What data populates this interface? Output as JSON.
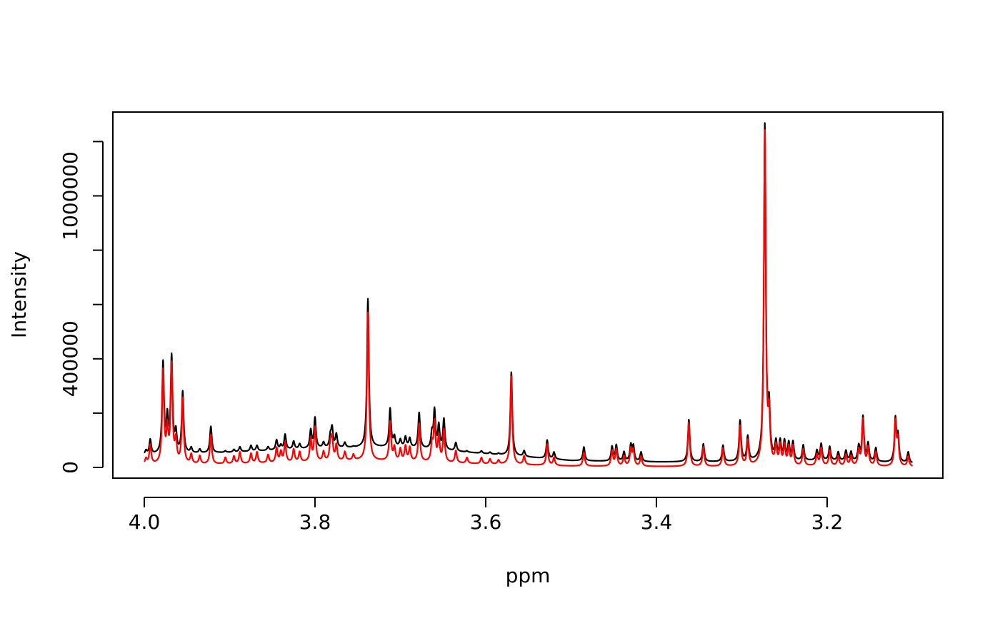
{
  "chart_data": {
    "type": "line",
    "title": "",
    "xlabel": "ppm",
    "ylabel": "Intensity",
    "x_reversed": true,
    "xlim": [
      4.0,
      3.1
    ],
    "ylim": [
      0,
      1200000
    ],
    "x_ticks": [
      4.0,
      3.8,
      3.6,
      3.4,
      3.2
    ],
    "x_tick_labels": [
      "4.0",
      "3.8",
      "3.6",
      "3.4",
      "3.2"
    ],
    "y_ticks": [
      0,
      200000,
      400000,
      600000,
      800000,
      1000000,
      1200000
    ],
    "y_tick_labels": [
      "0",
      "",
      "400000",
      "",
      "",
      "1000000",
      ""
    ],
    "grid": false,
    "legend": "none",
    "series": [
      {
        "color": "#000000",
        "baseline": [
          [
            4.0,
            45000
          ],
          [
            3.9,
            55000
          ],
          [
            3.8,
            70000
          ],
          [
            3.7,
            75000
          ],
          [
            3.6,
            50000
          ],
          [
            3.5,
            25000
          ],
          [
            3.45,
            22000
          ],
          [
            3.4,
            20000
          ],
          [
            3.3,
            20000
          ],
          [
            3.2,
            25000
          ],
          [
            3.1,
            15000
          ]
        ],
        "peaks": [
          [
            3.998,
            60000
          ],
          [
            3.993,
            100000
          ],
          [
            3.978,
            380000
          ],
          [
            3.973,
            170000
          ],
          [
            3.968,
            400000
          ],
          [
            3.963,
            120000
          ],
          [
            3.955,
            275000
          ],
          [
            3.945,
            70000
          ],
          [
            3.935,
            65000
          ],
          [
            3.922,
            150000
          ],
          [
            3.905,
            60000
          ],
          [
            3.895,
            65000
          ],
          [
            3.888,
            75000
          ],
          [
            3.875,
            80000
          ],
          [
            3.868,
            80000
          ],
          [
            3.855,
            75000
          ],
          [
            3.845,
            100000
          ],
          [
            3.84,
            80000
          ],
          [
            3.835,
            120000
          ],
          [
            3.825,
            95000
          ],
          [
            3.818,
            85000
          ],
          [
            3.805,
            135000
          ],
          [
            3.8,
            180000
          ],
          [
            3.79,
            90000
          ],
          [
            3.782,
            110000
          ],
          [
            3.78,
            140000
          ],
          [
            3.775,
            120000
          ],
          [
            3.765,
            90000
          ],
          [
            3.755,
            75000
          ],
          [
            3.738,
            620000
          ],
          [
            3.712,
            215000
          ],
          [
            3.707,
            110000
          ],
          [
            3.7,
            100000
          ],
          [
            3.694,
            110000
          ],
          [
            3.689,
            105000
          ],
          [
            3.678,
            200000
          ],
          [
            3.663,
            120000
          ],
          [
            3.66,
            205000
          ],
          [
            3.655,
            150000
          ],
          [
            3.649,
            175000
          ],
          [
            3.635,
            90000
          ],
          [
            3.622,
            60000
          ],
          [
            3.605,
            60000
          ],
          [
            3.595,
            55000
          ],
          [
            3.585,
            50000
          ],
          [
            3.57,
            350000
          ],
          [
            3.555,
            60000
          ],
          [
            3.528,
            100000
          ],
          [
            3.52,
            55000
          ],
          [
            3.485,
            75000
          ],
          [
            3.452,
            75000
          ],
          [
            3.447,
            80000
          ],
          [
            3.438,
            55000
          ],
          [
            3.43,
            80000
          ],
          [
            3.427,
            75000
          ],
          [
            3.418,
            55000
          ],
          [
            3.362,
            175000
          ],
          [
            3.345,
            85000
          ],
          [
            3.322,
            80000
          ],
          [
            3.302,
            170000
          ],
          [
            3.293,
            110000
          ],
          [
            3.273,
            1255000
          ],
          [
            3.268,
            195000
          ],
          [
            3.26,
            85000
          ],
          [
            3.255,
            90000
          ],
          [
            3.25,
            90000
          ],
          [
            3.245,
            85000
          ],
          [
            3.24,
            90000
          ],
          [
            3.228,
            80000
          ],
          [
            3.212,
            60000
          ],
          [
            3.207,
            85000
          ],
          [
            3.197,
            75000
          ],
          [
            3.187,
            55000
          ],
          [
            3.178,
            60000
          ],
          [
            3.172,
            55000
          ],
          [
            3.163,
            75000
          ],
          [
            3.158,
            185000
          ],
          [
            3.152,
            85000
          ],
          [
            3.143,
            70000
          ],
          [
            3.12,
            175000
          ],
          [
            3.117,
            110000
          ],
          [
            3.105,
            55000
          ]
        ]
      },
      {
        "color": "#FF0000",
        "baseline": [
          [
            4.0,
            10000
          ],
          [
            3.9,
            12000
          ],
          [
            3.8,
            20000
          ],
          [
            3.75,
            25000
          ],
          [
            3.7,
            22000
          ],
          [
            3.6,
            12000
          ],
          [
            3.5,
            5000
          ],
          [
            3.4,
            3000
          ],
          [
            3.3,
            3000
          ],
          [
            3.2,
            5000
          ],
          [
            3.1,
            2000
          ]
        ],
        "peaks": [
          [
            3.998,
            30000
          ],
          [
            3.993,
            80000
          ],
          [
            3.978,
            350000
          ],
          [
            3.973,
            130000
          ],
          [
            3.968,
            370000
          ],
          [
            3.963,
            90000
          ],
          [
            3.955,
            250000
          ],
          [
            3.945,
            45000
          ],
          [
            3.935,
            40000
          ],
          [
            3.922,
            120000
          ],
          [
            3.905,
            35000
          ],
          [
            3.895,
            40000
          ],
          [
            3.888,
            55000
          ],
          [
            3.875,
            50000
          ],
          [
            3.868,
            55000
          ],
          [
            3.855,
            45000
          ],
          [
            3.845,
            70000
          ],
          [
            3.84,
            55000
          ],
          [
            3.835,
            90000
          ],
          [
            3.825,
            65000
          ],
          [
            3.818,
            55000
          ],
          [
            3.805,
            100000
          ],
          [
            3.8,
            145000
          ],
          [
            3.79,
            55000
          ],
          [
            3.782,
            80000
          ],
          [
            3.78,
            100000
          ],
          [
            3.775,
            80000
          ],
          [
            3.765,
            55000
          ],
          [
            3.755,
            45000
          ],
          [
            3.738,
            570000
          ],
          [
            3.712,
            165000
          ],
          [
            3.707,
            70000
          ],
          [
            3.7,
            65000
          ],
          [
            3.694,
            75000
          ],
          [
            3.689,
            70000
          ],
          [
            3.678,
            160000
          ],
          [
            3.663,
            80000
          ],
          [
            3.66,
            160000
          ],
          [
            3.655,
            110000
          ],
          [
            3.649,
            135000
          ],
          [
            3.635,
            60000
          ],
          [
            3.622,
            35000
          ],
          [
            3.605,
            35000
          ],
          [
            3.595,
            30000
          ],
          [
            3.585,
            25000
          ],
          [
            3.57,
            335000
          ],
          [
            3.555,
            40000
          ],
          [
            3.528,
            85000
          ],
          [
            3.52,
            35000
          ],
          [
            3.485,
            55000
          ],
          [
            3.452,
            60000
          ],
          [
            3.447,
            65000
          ],
          [
            3.438,
            40000
          ],
          [
            3.43,
            65000
          ],
          [
            3.427,
            60000
          ],
          [
            3.418,
            40000
          ],
          [
            3.362,
            165000
          ],
          [
            3.345,
            75000
          ],
          [
            3.322,
            70000
          ],
          [
            3.302,
            150000
          ],
          [
            3.293,
            95000
          ],
          [
            3.273,
            1230000
          ],
          [
            3.268,
            170000
          ],
          [
            3.26,
            70000
          ],
          [
            3.255,
            75000
          ],
          [
            3.25,
            75000
          ],
          [
            3.245,
            70000
          ],
          [
            3.24,
            75000
          ],
          [
            3.228,
            65000
          ],
          [
            3.212,
            45000
          ],
          [
            3.207,
            70000
          ],
          [
            3.197,
            60000
          ],
          [
            3.187,
            40000
          ],
          [
            3.178,
            45000
          ],
          [
            3.172,
            40000
          ],
          [
            3.163,
            60000
          ],
          [
            3.158,
            175000
          ],
          [
            3.152,
            70000
          ],
          [
            3.143,
            55000
          ],
          [
            3.12,
            165000
          ],
          [
            3.117,
            95000
          ],
          [
            3.105,
            40000
          ]
        ]
      }
    ]
  }
}
